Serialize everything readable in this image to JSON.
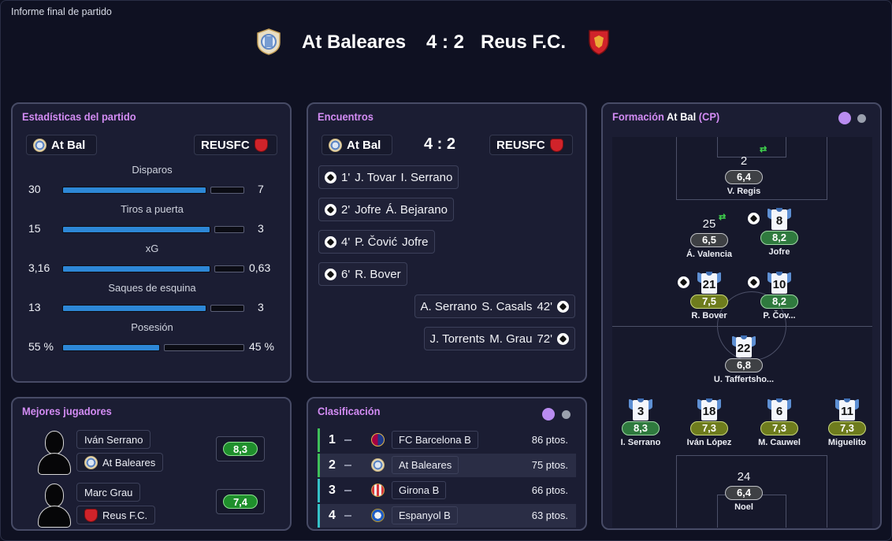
{
  "page_label": "Informe final de partido",
  "match": {
    "home": "At Baleares",
    "away": "Reus F.C.",
    "score": "4 : 2"
  },
  "stats": {
    "title": "Estadísticas del partido",
    "home_short": "At Bal",
    "away_short": "REUSFC",
    "rows": [
      {
        "label": "Disparos",
        "home": "30",
        "away": "7",
        "home_share": 0.81
      },
      {
        "label": "Tiros a puerta",
        "home": "15",
        "away": "3",
        "home_share": 0.83
      },
      {
        "label": "xG",
        "home": "3,16",
        "away": "0,63",
        "home_share": 0.83
      },
      {
        "label": "Saques de esquina",
        "home": "13",
        "away": "3",
        "home_share": 0.81
      },
      {
        "label": "Posesión",
        "home": "55 %",
        "away": "45 %",
        "home_share": 0.55
      }
    ]
  },
  "encounters": {
    "title": "Encuentros",
    "home_short": "At Bal",
    "away_short": "REUSFC",
    "score": "4 : 2",
    "events": [
      {
        "side": "home",
        "minute": "1'",
        "scorer": "J. Tovar",
        "assist": "I. Serrano"
      },
      {
        "side": "home",
        "minute": "2'",
        "scorer": "Jofre",
        "assist": "Á. Bejarano"
      },
      {
        "side": "home",
        "minute": "4'",
        "scorer": "P. Čović",
        "assist": "Jofre"
      },
      {
        "side": "home",
        "minute": "6'",
        "scorer": "R. Bover",
        "assist": ""
      },
      {
        "side": "away",
        "minute": "42'",
        "scorer": "S. Casals",
        "assist": "A. Serrano"
      },
      {
        "side": "away",
        "minute": "72'",
        "scorer": "M. Grau",
        "assist": "J. Torrents"
      }
    ]
  },
  "formation": {
    "title_prefix": "Formación",
    "team": "At Bal",
    "tag": "(CP)",
    "players": [
      {
        "num": "2",
        "name": "V. Regis",
        "rating": "6,4",
        "kit": false,
        "tone": "grey",
        "sub": true,
        "goal": false
      },
      {
        "num": "25",
        "name": "Á. Valencia",
        "rating": "6,5",
        "kit": false,
        "tone": "grey",
        "sub": true,
        "goal": false
      },
      {
        "num": "8",
        "name": "Jofre",
        "rating": "8,2",
        "kit": true,
        "tone": "dgreen",
        "sub": false,
        "goal": true
      },
      {
        "num": "21",
        "name": "R. Bover",
        "rating": "7,5",
        "kit": true,
        "tone": "olive",
        "sub": false,
        "goal": true
      },
      {
        "num": "10",
        "name": "P. Čov...",
        "rating": "8,2",
        "kit": true,
        "tone": "dgreen",
        "sub": false,
        "goal": true
      },
      {
        "num": "22",
        "name": "U. Taffertsho...",
        "rating": "6,8",
        "kit": true,
        "tone": "grey",
        "sub": false,
        "goal": false
      },
      {
        "num": "3",
        "name": "I. Serrano",
        "rating": "8,3",
        "kit": true,
        "tone": "dgreen",
        "sub": false,
        "goal": false
      },
      {
        "num": "18",
        "name": "Iván López",
        "rating": "7,3",
        "kit": true,
        "tone": "olive",
        "sub": false,
        "goal": false
      },
      {
        "num": "6",
        "name": "M. Cauwel",
        "rating": "7,3",
        "kit": true,
        "tone": "olive",
        "sub": false,
        "goal": false
      },
      {
        "num": "11",
        "name": "Miguelito",
        "rating": "7,3",
        "kit": true,
        "tone": "olive",
        "sub": false,
        "goal": false
      },
      {
        "num": "24",
        "name": "Noel",
        "rating": "6,4",
        "kit": false,
        "tone": "grey",
        "sub": false,
        "goal": false
      }
    ]
  },
  "best_players": {
    "title": "Mejores jugadores",
    "players": [
      {
        "name": "Iván Serrano",
        "team": "At Baleares",
        "rating": "8,3"
      },
      {
        "name": "Marc Grau",
        "team": "Reus F.C.",
        "rating": "7,4"
      }
    ]
  },
  "standings": {
    "title": "Clasificación",
    "rows": [
      {
        "pos": "1",
        "team": "FC Barcelona B",
        "pts": "86 ptos.",
        "bar": "#3fbf5a"
      },
      {
        "pos": "2",
        "team": "At Baleares",
        "pts": "75 ptos.",
        "bar": "#3fbf5a"
      },
      {
        "pos": "3",
        "team": "Girona B",
        "pts": "66 ptos.",
        "bar": "#35c1c8"
      },
      {
        "pos": "4",
        "team": "Espanyol B",
        "pts": "63 ptos.",
        "bar": "#35c1c8"
      }
    ]
  },
  "colors": {
    "accent": "#d38cf4",
    "bar_blue": "#2d87d6",
    "toggle_active": "#b98cf0",
    "toggle_inactive": "#9aa0ad"
  }
}
